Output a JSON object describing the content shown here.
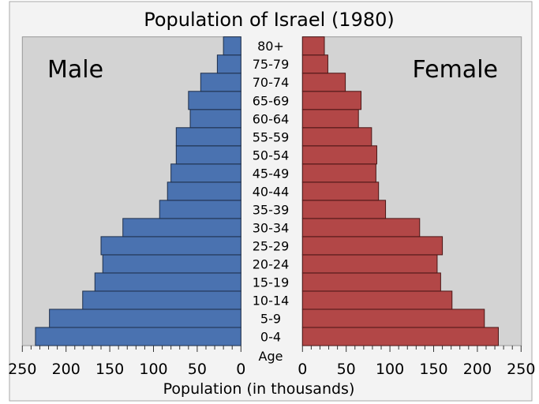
{
  "chart_data": {
    "type": "bar",
    "subtype": "population-pyramid",
    "title": "Population of Israel (1980)",
    "xlabel": "Population (in thousands)",
    "ylabel": "Age",
    "xlim": [
      0,
      250
    ],
    "xticks": [
      0,
      50,
      100,
      150,
      200,
      250
    ],
    "categories": [
      "0-4",
      "5-9",
      "10-14",
      "15-19",
      "20-24",
      "25-29",
      "30-34",
      "35-39",
      "40-44",
      "45-49",
      "50-54",
      "55-59",
      "60-64",
      "65-69",
      "70-74",
      "75-79",
      "80+"
    ],
    "series": [
      {
        "name": "Male",
        "color": "#4a72b0",
        "values": [
          235,
          219,
          181,
          167,
          158,
          160,
          135,
          93,
          84,
          80,
          74,
          74,
          58,
          60,
          46,
          27,
          20
        ]
      },
      {
        "name": "Female",
        "color": "#b24747",
        "values": [
          224,
          208,
          171,
          158,
          154,
          160,
          134,
          95,
          87,
          84,
          85,
          79,
          64,
          67,
          49,
          29,
          25
        ]
      }
    ],
    "panel_background": "#d3d3d3",
    "grid": false
  }
}
